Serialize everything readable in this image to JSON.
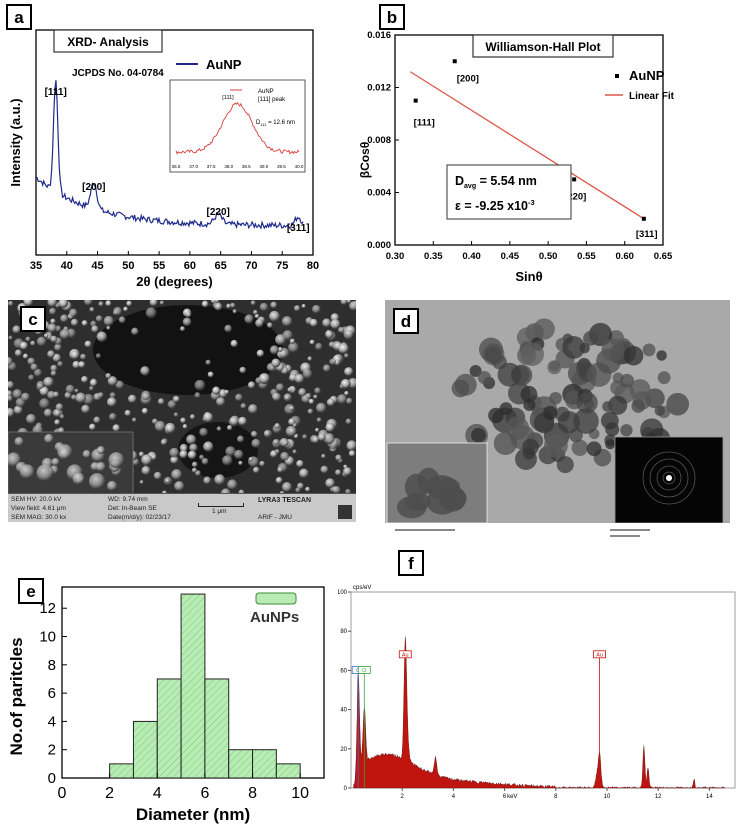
{
  "panels": {
    "a": "a",
    "b": "b",
    "c": "c",
    "d": "d",
    "e": "e",
    "f": "f"
  },
  "chart_data": [
    {
      "panel": "a",
      "type": "line",
      "title": "XRD- Analysis",
      "subtitle": "JCPDS No. 04-0784",
      "xlabel": "2θ (degrees)",
      "ylabel": "Intensity (a.u.)",
      "xlim": [
        35,
        80
      ],
      "xticks": [
        35,
        40,
        45,
        50,
        55,
        60,
        65,
        70,
        75,
        80
      ],
      "legend": "AuNP",
      "color": "#1f2a8c",
      "peaks": [
        {
          "label": "[111]",
          "x": 38.2
        },
        {
          "label": "[200]",
          "x": 44.4
        },
        {
          "label": "[220]",
          "x": 64.6
        },
        {
          "label": "[311]",
          "x": 77.6
        }
      ],
      "inset": {
        "legend_line1": "AuNP",
        "legend_line2": "[111] peak",
        "peak_label": "[111]",
        "d_label": "D",
        "d_sub": "111",
        "d_value": " = 12.6 nm",
        "xticks": [
          "36.5",
          "37.0",
          "37.5",
          "38.0",
          "38.5",
          "39.0",
          "39.5",
          "40.0"
        ],
        "color": "#d9413a"
      }
    },
    {
      "panel": "b",
      "type": "scatter",
      "title": "Williamson-Hall Plot",
      "xlabel": "Sinθ",
      "ylabel": "βCosθ",
      "xlim": [
        0.3,
        0.65
      ],
      "ylim": [
        0.0,
        0.016
      ],
      "xticks": [
        "0.30",
        "0.35",
        "0.40",
        "0.45",
        "0.50",
        "0.55",
        "0.60",
        "0.65"
      ],
      "yticks": [
        "0.000",
        "0.004",
        "0.008",
        "0.012",
        "0.016"
      ],
      "legend": [
        "AuNP",
        "Linear Fit"
      ],
      "points": [
        {
          "x": 0.327,
          "y": 0.011,
          "label": "[111]"
        },
        {
          "x": 0.378,
          "y": 0.014,
          "label": "[200]"
        },
        {
          "x": 0.534,
          "y": 0.005,
          "label": "[220]"
        },
        {
          "x": 0.625,
          "y": 0.002,
          "label": "[311]"
        }
      ],
      "fit": {
        "x": [
          0.32,
          0.625
        ],
        "y": [
          0.0132,
          0.002
        ]
      },
      "annotation": {
        "d_label": "D",
        "d_sub": "avg",
        "d_value": " = 5.54 nm",
        "eps_text": "ε = -9.25 x10",
        "eps_exp": "-3"
      }
    },
    {
      "panel": "e",
      "type": "bar",
      "xlabel": "Diameter (nm)",
      "ylabel": "No.of paritcles",
      "xlim": [
        0,
        11
      ],
      "ylim": [
        0,
        13.5
      ],
      "xticks": [
        "0",
        "2",
        "4",
        "6",
        "8",
        "10"
      ],
      "yticks": [
        "0",
        "2",
        "4",
        "6",
        "8",
        "10",
        "12"
      ],
      "legend": "AuNPs",
      "bins": [
        {
          "from": 2,
          "to": 3,
          "count": 1
        },
        {
          "from": 3,
          "to": 4,
          "count": 4
        },
        {
          "from": 4,
          "to": 5,
          "count": 7
        },
        {
          "from": 5,
          "to": 6,
          "count": 13
        },
        {
          "from": 6,
          "to": 7,
          "count": 7
        },
        {
          "from": 7,
          "to": 8,
          "count": 2
        },
        {
          "from": 8,
          "to": 9,
          "count": 2
        },
        {
          "from": 9,
          "to": 10,
          "count": 1
        }
      ],
      "color": "#b8ecb4"
    },
    {
      "panel": "f",
      "type": "area",
      "ylabel": "cps/eV",
      "xlabel": "keV",
      "xlim": [
        0,
        15
      ],
      "ylim": [
        0,
        100
      ],
      "xticks": [
        "2",
        "4",
        "6",
        "8",
        "10",
        "12",
        "14"
      ],
      "yticks": [
        "0",
        "20",
        "40",
        "60",
        "80",
        "100"
      ],
      "element_labels": [
        {
          "text": "C",
          "x": 0.28
        },
        {
          "text": "O",
          "x": 0.52
        },
        {
          "text": "Au",
          "x": 2.12
        },
        {
          "text": "Au",
          "x": 9.71
        }
      ],
      "color": "#c0140e"
    }
  ],
  "sem": {
    "footer": [
      "SEM HV: 20.0 kV",
      "WD: 9.74 mm",
      "LYRA3 TESCAN",
      "View field: 4.61 μm",
      "Det: In-Beam SE",
      "1 μm",
      "SEM MAG: 30.0 kx",
      "Date(m/d/y): 02/23/17",
      "ARIF - JMU"
    ]
  }
}
